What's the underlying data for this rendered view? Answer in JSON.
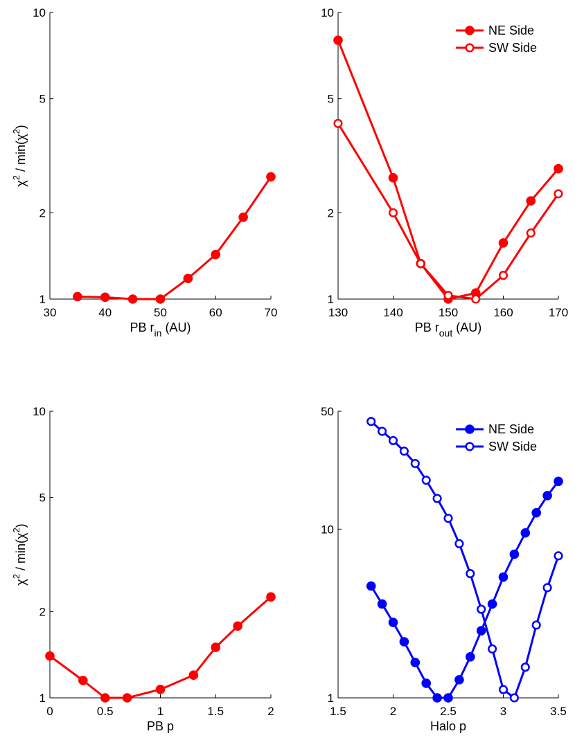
{
  "chart_data": [
    {
      "type": "line",
      "panel": "top-left",
      "yscale": "log",
      "xlim": [
        30,
        70
      ],
      "ylim": [
        1,
        10
      ],
      "xticks": [
        30,
        40,
        50,
        60,
        70
      ],
      "xtick_labels": [
        "30",
        "40",
        "50",
        "60",
        "70"
      ],
      "yticks": [
        1,
        2,
        5,
        10
      ],
      "ytick_labels": [
        "1",
        "2",
        "5",
        "10"
      ],
      "xlabel": "PB r",
      "xlabel_sub": "in",
      "xlabel_tail": " (AU)",
      "ylabel": "χ",
      "ylabel_sup": "2",
      "ylabel_mid": " / min(χ",
      "ylabel_sup2": "2",
      "ylabel_end": ")",
      "series": [
        {
          "name": "PB r_in",
          "color": "#ff0000",
          "filled": true,
          "x": [
            35,
            40,
            45,
            50,
            55,
            60,
            65,
            70
          ],
          "values": [
            1.02,
            1.015,
            1.0,
            1.0,
            1.18,
            1.43,
            1.93,
            2.67
          ]
        }
      ]
    },
    {
      "type": "line",
      "panel": "top-right",
      "yscale": "log",
      "xlim": [
        130,
        170
      ],
      "ylim": [
        1,
        10
      ],
      "xticks": [
        130,
        140,
        150,
        160,
        170
      ],
      "xtick_labels": [
        "130",
        "140",
        "150",
        "160",
        "170"
      ],
      "yticks": [
        1,
        2,
        5,
        10
      ],
      "ytick_labels": [
        "1",
        "2",
        "5",
        "10"
      ],
      "xlabel": "PB r",
      "xlabel_sub": "out",
      "xlabel_tail": " (AU)",
      "legend": "top-right",
      "series": [
        {
          "name": "NE Side",
          "color": "#ff0000",
          "filled": true,
          "x": [
            130,
            140,
            145,
            150,
            155,
            160,
            165,
            170
          ],
          "values": [
            8.0,
            2.65,
            1.33,
            1.0,
            1.05,
            1.57,
            2.2,
            2.85
          ]
        },
        {
          "name": "SW Side",
          "color": "#ff0000",
          "filled": false,
          "x": [
            130,
            140,
            145,
            150,
            155,
            160,
            165,
            170
          ],
          "values": [
            4.1,
            2.0,
            1.33,
            1.03,
            1.0,
            1.21,
            1.7,
            2.33
          ]
        }
      ]
    },
    {
      "type": "line",
      "panel": "bottom-left",
      "yscale": "log",
      "xlim": [
        0,
        2
      ],
      "ylim": [
        1,
        10
      ],
      "xticks": [
        0,
        0.5,
        1,
        1.5,
        2
      ],
      "xtick_labels": [
        "0",
        "0.5",
        "1",
        "1.5",
        "2"
      ],
      "yticks": [
        1,
        2,
        5,
        10
      ],
      "ytick_labels": [
        "1",
        "2",
        "5",
        "10"
      ],
      "xlabel": "PB p",
      "ylabel": "χ",
      "ylabel_sup": "2",
      "ylabel_mid": " / min(χ",
      "ylabel_sup2": "2",
      "ylabel_end": ")",
      "series": [
        {
          "name": "PB p",
          "color": "#ff0000",
          "filled": true,
          "x": [
            0,
            0.3,
            0.5,
            0.7,
            1.0,
            1.3,
            1.5,
            1.7,
            2.0
          ],
          "values": [
            1.4,
            1.15,
            1.0,
            1.0,
            1.07,
            1.2,
            1.5,
            1.78,
            2.25
          ]
        }
      ]
    },
    {
      "type": "line",
      "panel": "bottom-right",
      "yscale": "log",
      "xlim": [
        1.5,
        3.5
      ],
      "ylim": [
        1,
        50
      ],
      "xticks": [
        1.5,
        2,
        2.5,
        3,
        3.5
      ],
      "xtick_labels": [
        "1.5",
        "2",
        "2.5",
        "3",
        "3.5"
      ],
      "yticks": [
        1,
        10,
        50
      ],
      "ytick_labels": [
        "1",
        "10",
        "50"
      ],
      "xlabel": "Halo p",
      "legend": "top-right",
      "series": [
        {
          "name": "NE Side",
          "color": "#0000ff",
          "filled": true,
          "x": [
            1.8,
            1.9,
            2.0,
            2.1,
            2.2,
            2.3,
            2.4,
            2.5,
            2.6,
            2.7,
            2.8,
            2.9,
            3.0,
            3.1,
            3.2,
            3.3,
            3.4,
            3.5
          ],
          "values": [
            4.6,
            3.6,
            2.8,
            2.15,
            1.62,
            1.22,
            1.0,
            1.0,
            1.28,
            1.75,
            2.5,
            3.6,
            5.2,
            7.1,
            9.5,
            12.5,
            15.8,
            19.2
          ]
        },
        {
          "name": "SW Side",
          "color": "#0000ff",
          "filled": false,
          "x": [
            1.8,
            1.9,
            2.0,
            2.1,
            2.2,
            2.3,
            2.4,
            2.5,
            2.6,
            2.7,
            2.8,
            2.9,
            3.0,
            3.1,
            3.2,
            3.3,
            3.4,
            3.5
          ],
          "values": [
            43.5,
            38.0,
            33.5,
            29.0,
            24.5,
            19.5,
            15.2,
            11.6,
            8.2,
            5.45,
            3.35,
            1.95,
            1.12,
            1.0,
            1.52,
            2.7,
            4.5,
            6.95
          ]
        }
      ]
    }
  ]
}
